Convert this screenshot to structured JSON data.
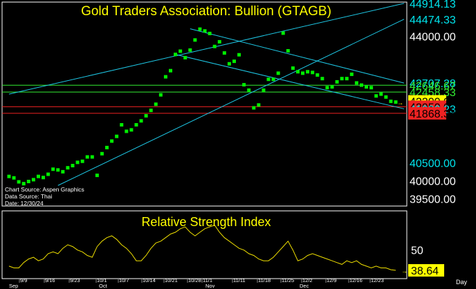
{
  "chart_data": [
    {
      "type": "scatter",
      "title": "Gold Traders Association: Bullion (GTAGB)",
      "ylim": [
        39300,
        44950
      ],
      "x_labels": [
        "9/9",
        "9/16",
        "9/23",
        "10/1",
        "10/7",
        "10/14",
        "10/21",
        "10/28",
        "11/1",
        "11/11",
        "11/18",
        "11/25",
        "12/2",
        "12/9",
        "12/16",
        "12/23"
      ],
      "months": [
        "Sep",
        "Oct",
        "Nov",
        "Dec"
      ],
      "source_lines": [
        "Chart Source: Aspen Graphics",
        "Data Source: Thai",
        "Date: 12/30/24"
      ],
      "price_labels": [
        {
          "text": "44914.13",
          "color": "#00e5ee"
        },
        {
          "text": "44474.33",
          "color": "#00e5ee"
        },
        {
          "text": "44000.00",
          "color": "#ffffff"
        },
        {
          "text": "42707.28",
          "color": "#00e5ee"
        },
        {
          "text": "42646.67",
          "color": "#33ee33"
        },
        {
          "text": "42458.33",
          "color": "#33ee33"
        },
        {
          "text": "42200.00",
          "color": "#ffff00"
        },
        {
          "text": "42050.00",
          "color": "#ee2222"
        },
        {
          "text": "41992.23",
          "color": "#00e5ee"
        },
        {
          "text": "41868.34",
          "color": "#ee2222"
        },
        {
          "text": "40500.00",
          "color": "#00e5ee"
        },
        {
          "text": "40000.00",
          "color": "#ffffff"
        },
        {
          "text": "39500.00",
          "color": "#ffffff"
        }
      ],
      "colors": {
        "points": "#00ee00",
        "trendlines": "#1ec8e6",
        "support": "#33ee33",
        "resistance": "#ee2222",
        "price_tag": "#ffff00"
      },
      "series": [
        {
          "name": "GTAGB",
          "values": [
            40120,
            40080,
            39970,
            39920,
            39980,
            40030,
            40120,
            40090,
            40180,
            40320,
            40300,
            40250,
            40360,
            40420,
            40510,
            40540,
            40660,
            40660,
            40150,
            40750,
            40920,
            41100,
            41230,
            41550,
            41370,
            41410,
            41550,
            41660,
            41800,
            41950,
            42120,
            42380,
            42880,
            43050,
            43500,
            43590,
            43410,
            43620,
            43900,
            44200,
            44150,
            44080,
            43720,
            43850,
            43540,
            43240,
            43310,
            43490,
            42660,
            42510,
            42020,
            42100,
            42510,
            42810,
            42810,
            42980,
            44090,
            43600,
            43120,
            43020,
            42980,
            43020,
            43000,
            42930,
            42830,
            42580,
            42600,
            42740,
            42830,
            42830,
            42950,
            42710,
            42650,
            42600,
            42580,
            42350,
            42400,
            42320,
            42200,
            42180
          ]
        }
      ]
    },
    {
      "type": "line",
      "title": "Relative Strength Index",
      "ylim": [
        34,
        72
      ],
      "y_ticks": [
        50
      ],
      "last_value": "38.64",
      "colors": {
        "line": "#f0e000",
        "value_tag": "#ffff00"
      },
      "series": [
        {
          "name": "RSI",
          "values": [
            41,
            40,
            40,
            43,
            45,
            46,
            44,
            45,
            48,
            49,
            48,
            51,
            53,
            52,
            50,
            49,
            47,
            46,
            52,
            55,
            57,
            58,
            56,
            53,
            51,
            48,
            44,
            44,
            47,
            51,
            54,
            55,
            57,
            59,
            60,
            62,
            63,
            60,
            58,
            60,
            62,
            63,
            64,
            60,
            57,
            55,
            53,
            51,
            50,
            48,
            47,
            45,
            44,
            44,
            46,
            49,
            52,
            55,
            50,
            44,
            45,
            47,
            48,
            47,
            46,
            45,
            44,
            43,
            42,
            44,
            43,
            44,
            42,
            41,
            40,
            41,
            40,
            40,
            39,
            38.64
          ]
        }
      ]
    }
  ],
  "footer": {
    "day_label": "Day"
  }
}
